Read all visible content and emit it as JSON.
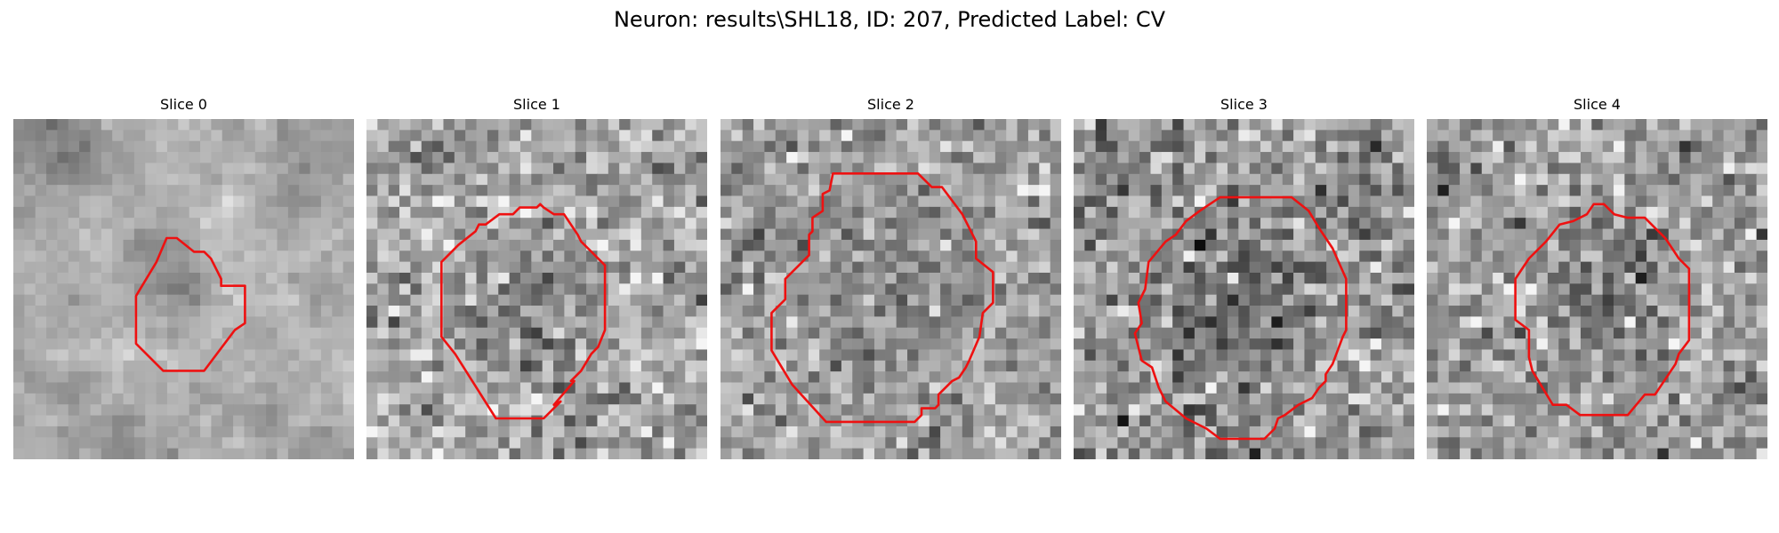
{
  "figure": {
    "title": "Neuron: results\\SHL18, ID: 207, Predicted Label: CV",
    "contour_color": "#ee1111"
  },
  "panels": [
    {
      "title": "Slice 0"
    },
    {
      "title": "Slice 1"
    },
    {
      "title": "Slice 2"
    },
    {
      "title": "Slice 3"
    },
    {
      "title": "Slice 4"
    }
  ]
}
